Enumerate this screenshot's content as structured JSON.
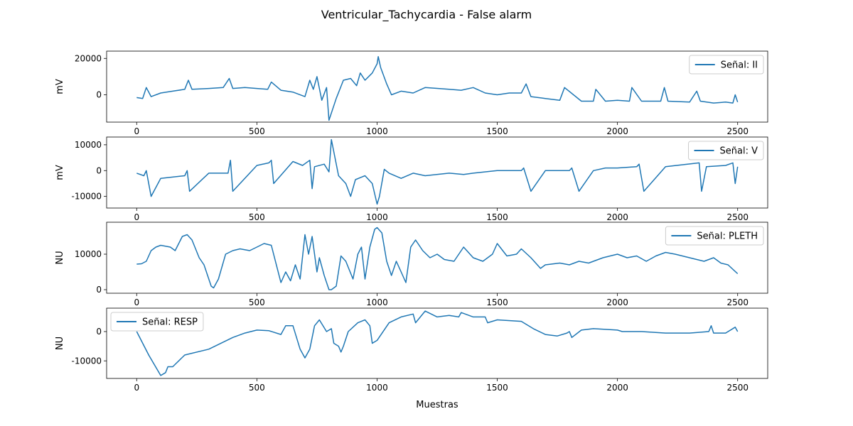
{
  "chart_data": {
    "type": "line",
    "title": "Ventricular_Tachycardia - False alarm",
    "xlabel": "Muestras",
    "xlim": [
      -125,
      2625
    ],
    "x_ticks": [
      0,
      500,
      1000,
      1500,
      2000,
      2500
    ],
    "grid": false,
    "line_color": "#1f77b4",
    "panels": [
      {
        "name": "Señal: II",
        "legend_label": "Señal: II",
        "legend_position": "top-right",
        "ylabel": "mV",
        "ylim": [
          -15000,
          24000
        ],
        "y_ticks": [
          0,
          20000
        ],
        "x": [
          0,
          25,
          40,
          60,
          100,
          150,
          200,
          215,
          230,
          300,
          360,
          385,
          400,
          450,
          500,
          545,
          560,
          600,
          650,
          700,
          720,
          735,
          750,
          770,
          790,
          800,
          830,
          860,
          890,
          915,
          930,
          950,
          980,
          1000,
          1005,
          1015,
          1040,
          1060,
          1100,
          1150,
          1200,
          1300,
          1350,
          1400,
          1450,
          1500,
          1550,
          1600,
          1620,
          1640,
          1700,
          1760,
          1780,
          1850,
          1900,
          1910,
          1950,
          2000,
          2050,
          2060,
          2100,
          2180,
          2195,
          2210,
          2300,
          2330,
          2345,
          2400,
          2450,
          2480,
          2490,
          2500
        ],
        "values": [
          -1500,
          -2000,
          4000,
          -1000,
          1000,
          2000,
          3000,
          8000,
          3000,
          3500,
          4000,
          9000,
          3500,
          4000,
          3500,
          3000,
          7000,
          2500,
          1500,
          -1000,
          8000,
          3000,
          10000,
          -3000,
          4000,
          -14000,
          -2000,
          8000,
          9000,
          5000,
          12000,
          8000,
          12000,
          17000,
          21000,
          15000,
          6000,
          0,
          2000,
          1000,
          4000,
          3000,
          2500,
          4000,
          1000,
          0,
          1000,
          1000,
          6000,
          -1000,
          -2000,
          -3000,
          4000,
          -3500,
          -3500,
          3000,
          -3500,
          -3000,
          -3500,
          4000,
          -3500,
          -3500,
          4000,
          -3500,
          -4000,
          2000,
          -3500,
          -4500,
          -4000,
          -4500,
          0,
          -4000
        ]
      },
      {
        "name": "Señal: V",
        "legend_label": "Señal: V",
        "legend_position": "top-right",
        "ylabel": "mV",
        "ylim": [
          -14500,
          13000
        ],
        "y_ticks": [
          -10000,
          0,
          10000
        ],
        "x": [
          0,
          30,
          40,
          60,
          100,
          200,
          210,
          220,
          300,
          380,
          390,
          400,
          500,
          550,
          560,
          570,
          650,
          690,
          720,
          730,
          740,
          780,
          800,
          810,
          840,
          870,
          890,
          910,
          950,
          980,
          1000,
          1010,
          1030,
          1050,
          1100,
          1150,
          1200,
          1300,
          1360,
          1400,
          1500,
          1600,
          1610,
          1640,
          1700,
          1800,
          1810,
          1840,
          1900,
          1950,
          2000,
          2080,
          2090,
          2110,
          2200,
          2340,
          2350,
          2370,
          2450,
          2480,
          2490,
          2500
        ],
        "values": [
          -1000,
          -2000,
          0,
          -10000,
          -3000,
          -2000,
          0,
          -8000,
          -1000,
          -1000,
          4000,
          -8000,
          2000,
          3000,
          4000,
          -5000,
          3500,
          2000,
          4000,
          -7000,
          1500,
          2500,
          -500,
          12000,
          -2000,
          -5000,
          -10000,
          -3500,
          -2000,
          -5000,
          -13000,
          -10000,
          500,
          -1000,
          -3000,
          -1000,
          -2000,
          -1000,
          -1500,
          -1000,
          0,
          0,
          1000,
          -8000,
          0,
          0,
          1000,
          -8000,
          0,
          1000,
          1000,
          1500,
          2500,
          -8000,
          1500,
          3000,
          -8000,
          1500,
          2000,
          3000,
          -5000,
          1500
        ]
      },
      {
        "name": "Señal: PLETH",
        "legend_label": "Señal: PLETH",
        "legend_position": "top-right",
        "ylabel": "NU",
        "ylim": [
          -1000,
          19000
        ],
        "y_ticks": [
          0,
          10000
        ],
        "x": [
          0,
          20,
          40,
          60,
          80,
          100,
          140,
          160,
          190,
          210,
          230,
          260,
          280,
          310,
          320,
          340,
          370,
          400,
          430,
          470,
          500,
          530,
          560,
          600,
          620,
          640,
          660,
          680,
          700,
          715,
          730,
          750,
          760,
          780,
          800,
          810,
          830,
          850,
          870,
          900,
          920,
          935,
          950,
          970,
          990,
          1000,
          1020,
          1040,
          1060,
          1080,
          1100,
          1120,
          1140,
          1160,
          1190,
          1220,
          1250,
          1280,
          1320,
          1360,
          1400,
          1440,
          1480,
          1500,
          1540,
          1580,
          1600,
          1640,
          1680,
          1700,
          1760,
          1800,
          1840,
          1880,
          1940,
          2000,
          2040,
          2080,
          2120,
          2160,
          2200,
          2240,
          2300,
          2360,
          2400,
          2430,
          2460,
          2500
        ],
        "values": [
          7200,
          7300,
          8000,
          11000,
          12000,
          12500,
          12000,
          11000,
          15000,
          15500,
          14000,
          9000,
          7000,
          1000,
          500,
          3000,
          10000,
          11000,
          11500,
          11000,
          12000,
          13000,
          12500,
          2000,
          5000,
          2500,
          7000,
          3000,
          15500,
          10000,
          15000,
          5000,
          9000,
          4000,
          0,
          0,
          1000,
          9500,
          8000,
          3000,
          10000,
          12000,
          3000,
          12000,
          17000,
          17500,
          16000,
          8000,
          4000,
          8000,
          5000,
          2000,
          12000,
          14000,
          11000,
          9000,
          10000,
          8500,
          8000,
          12000,
          9000,
          8000,
          10000,
          13000,
          9500,
          10000,
          11500,
          9000,
          6000,
          7000,
          7500,
          7000,
          8000,
          7500,
          9000,
          10000,
          9000,
          9500,
          8000,
          9500,
          10500,
          10000,
          9000,
          8000,
          9000,
          7500,
          7000,
          4500
        ]
      },
      {
        "name": "Señal: RESP",
        "legend_label": "Señal: RESP",
        "legend_position": "top-left",
        "ylabel": "NU",
        "ylim": [
          -16000,
          8000
        ],
        "y_ticks": [
          -10000,
          0
        ],
        "x": [
          0,
          50,
          100,
          120,
          130,
          150,
          200,
          300,
          400,
          450,
          500,
          550,
          600,
          620,
          650,
          680,
          700,
          720,
          740,
          760,
          790,
          810,
          820,
          840,
          850,
          860,
          880,
          920,
          950,
          970,
          980,
          1000,
          1050,
          1100,
          1150,
          1160,
          1200,
          1250,
          1300,
          1340,
          1350,
          1400,
          1450,
          1460,
          1500,
          1600,
          1650,
          1700,
          1750,
          1790,
          1800,
          1810,
          1850,
          1900,
          2000,
          2020,
          2100,
          2200,
          2300,
          2380,
          2390,
          2400,
          2450,
          2490,
          2500
        ],
        "values": [
          0,
          -8000,
          -15000,
          -14000,
          -12000,
          -12000,
          -8000,
          -6000,
          -2000,
          -500,
          500,
          300,
          -1000,
          2000,
          2000,
          -6000,
          -9000,
          -6000,
          2000,
          4000,
          0,
          1000,
          -4000,
          -5000,
          -7000,
          -5000,
          0,
          3000,
          4000,
          2000,
          -4000,
          -3000,
          3000,
          5000,
          6000,
          3000,
          7000,
          5000,
          5500,
          5000,
          6500,
          5000,
          5000,
          3000,
          4000,
          3500,
          1000,
          -1000,
          -1500,
          -500,
          0,
          -2000,
          500,
          1000,
          500,
          0,
          0,
          -500,
          -500,
          0,
          2000,
          -500,
          -500,
          1500,
          0
        ]
      }
    ]
  }
}
